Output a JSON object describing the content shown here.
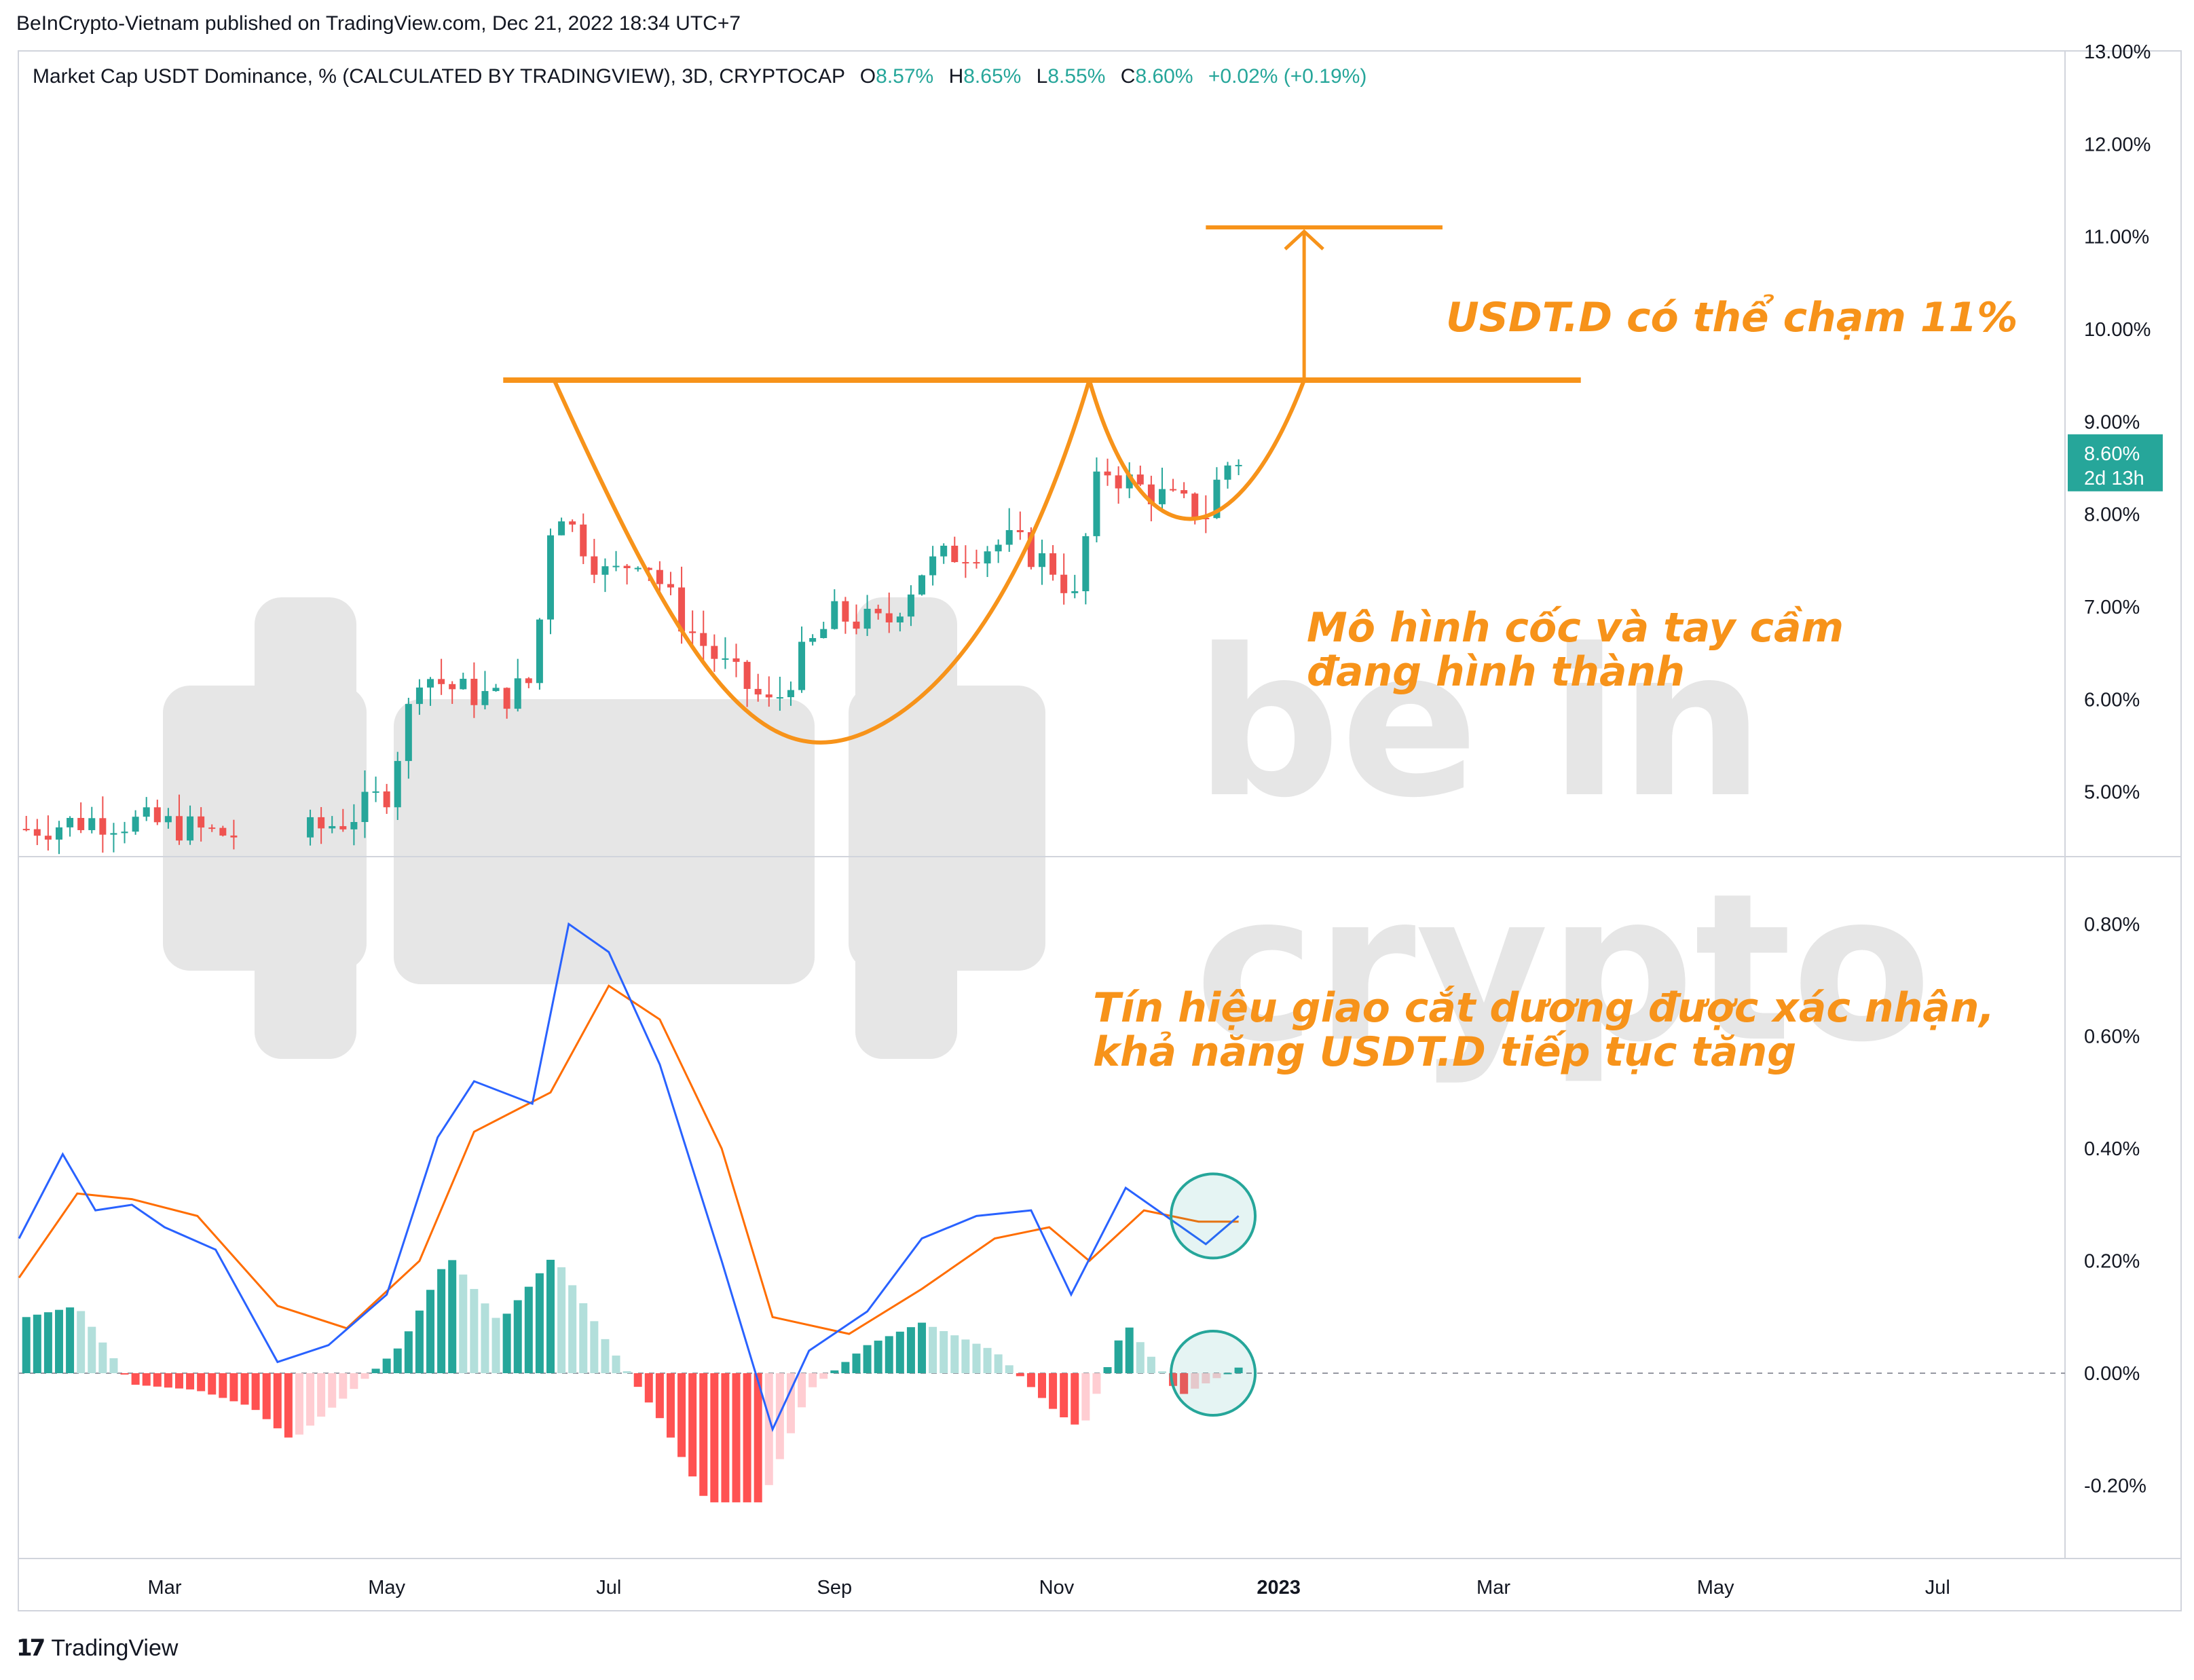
{
  "header": {
    "published": "BeInCrypto-Vietnam published on TradingView.com, Dec 21, 2022 18:34 UTC+7",
    "legend_title": "Market Cap USDT Dominance, % (CALCULATED BY TRADINGVIEW), 3D, CRYPTOCAP",
    "o_label": "O",
    "o_value": "8.57%",
    "h_label": "H",
    "h_value": "8.65%",
    "l_label": "L",
    "l_value": "8.55%",
    "c_label": "C",
    "c_value": "8.60%",
    "change": "+0.02% (+0.19%)"
  },
  "footer": {
    "logo_mark": "17",
    "brand": "TradingView"
  },
  "watermark": {
    "text1": "be in",
    "text2": "crypto"
  },
  "annotations": {
    "target": "USDT.D có thể chạm 11%",
    "pattern_line1": "Mô hình cốc và tay cầm",
    "pattern_line2": "đang hình thành",
    "signal_line1": "Tín hiệu giao cắt dương được xác nhận,",
    "signal_line2": "khả năng USDT.D tiếp tục tăng"
  },
  "price_badge": {
    "value": "8.60%",
    "countdown": "2d 13h"
  },
  "colors": {
    "up": "#26a69a",
    "down": "#ef5350",
    "hist_up_strong": "#26a69a",
    "hist_up_weak": "#b2dfdb",
    "hist_down_strong": "#ff5252",
    "hist_down_weak": "#ffcdd2",
    "macd": "#2962ff",
    "signal": "#ff6d00",
    "annotation": "#f7931a",
    "watermark": "#e6e6e6"
  },
  "chart_data": [
    {
      "type": "candlestick",
      "title": "Market Cap USDT Dominance, %",
      "y_ticks": [
        "5.00%",
        "6.00%",
        "7.00%",
        "8.00%",
        "9.00%",
        "10.00%",
        "11.00%",
        "12.00%",
        "13.00%"
      ],
      "ylim": [
        4.3,
        13.0
      ],
      "x_ticks": [
        "Mar",
        "May",
        "Jul",
        "Sep",
        "Nov",
        "2023",
        "Mar",
        "May",
        "Jul"
      ],
      "xlim_days": [
        "2022-01-20",
        "2023-08-05"
      ],
      "approx_close_path": [
        {
          "date": "2022-01-22",
          "close": 4.6
        },
        {
          "date": "2022-02-10",
          "close": 4.7
        },
        {
          "date": "2022-03-01",
          "close": 4.65
        },
        {
          "date": "2022-03-15",
          "close": 4.55
        },
        {
          "date": "2022-04-05",
          "close": 4.5
        },
        {
          "date": "2022-04-20",
          "close": 4.7
        },
        {
          "date": "2022-05-01",
          "close": 5.0
        },
        {
          "date": "2022-05-10",
          "close": 6.3
        },
        {
          "date": "2022-05-20",
          "close": 6.1
        },
        {
          "date": "2022-06-01",
          "close": 6.0
        },
        {
          "date": "2022-06-10",
          "close": 6.2
        },
        {
          "date": "2022-06-16",
          "close": 8.2
        },
        {
          "date": "2022-06-20",
          "close": 7.9
        },
        {
          "date": "2022-07-01",
          "close": 7.3
        },
        {
          "date": "2022-07-10",
          "close": 7.6
        },
        {
          "date": "2022-07-22",
          "close": 6.8
        },
        {
          "date": "2022-08-03",
          "close": 6.3
        },
        {
          "date": "2022-08-15",
          "close": 5.9
        },
        {
          "date": "2022-08-22",
          "close": 6.4
        },
        {
          "date": "2022-09-01",
          "close": 6.9
        },
        {
          "date": "2022-09-15",
          "close": 6.8
        },
        {
          "date": "2022-09-25",
          "close": 7.4
        },
        {
          "date": "2022-10-05",
          "close": 7.6
        },
        {
          "date": "2022-10-20",
          "close": 7.7
        },
        {
          "date": "2022-11-01",
          "close": 7.4
        },
        {
          "date": "2022-11-07",
          "close": 7.0
        },
        {
          "date": "2022-11-10",
          "close": 8.1
        },
        {
          "date": "2022-11-14",
          "close": 8.5
        },
        {
          "date": "2022-11-23",
          "close": 8.3
        },
        {
          "date": "2022-12-05",
          "close": 8.1
        },
        {
          "date": "2022-12-13",
          "close": 8.0
        },
        {
          "date": "2022-12-16",
          "close": 8.5
        },
        {
          "date": "2022-12-21",
          "close": 8.6
        }
      ],
      "resistance_level": 9.45,
      "target_level": 11.1,
      "last": {
        "open": 8.57,
        "high": 8.65,
        "low": 8.55,
        "close": 8.6
      }
    },
    {
      "type": "macd",
      "y_ticks": [
        "0.80%",
        "0.60%",
        "0.40%",
        "0.20%",
        "0.00%",
        "-0.20%"
      ],
      "ylim": [
        -0.33,
        0.92
      ],
      "macd_line": [
        {
          "date": "2022-01-20",
          "value": 0.24
        },
        {
          "date": "2022-02-01",
          "value": 0.39
        },
        {
          "date": "2022-02-10",
          "value": 0.29
        },
        {
          "date": "2022-02-20",
          "value": 0.3
        },
        {
          "date": "2022-03-01",
          "value": 0.26
        },
        {
          "date": "2022-03-15",
          "value": 0.22
        },
        {
          "date": "2022-04-01",
          "value": 0.02
        },
        {
          "date": "2022-04-15",
          "value": 0.05
        },
        {
          "date": "2022-05-01",
          "value": 0.14
        },
        {
          "date": "2022-05-15",
          "value": 0.42
        },
        {
          "date": "2022-05-25",
          "value": 0.52
        },
        {
          "date": "2022-06-10",
          "value": 0.48
        },
        {
          "date": "2022-06-20",
          "value": 0.8
        },
        {
          "date": "2022-07-01",
          "value": 0.75
        },
        {
          "date": "2022-07-15",
          "value": 0.55
        },
        {
          "date": "2022-08-01",
          "value": 0.2
        },
        {
          "date": "2022-08-15",
          "value": -0.1
        },
        {
          "date": "2022-08-25",
          "value": 0.04
        },
        {
          "date": "2022-09-10",
          "value": 0.11
        },
        {
          "date": "2022-09-25",
          "value": 0.24
        },
        {
          "date": "2022-10-10",
          "value": 0.28
        },
        {
          "date": "2022-10-25",
          "value": 0.29
        },
        {
          "date": "2022-11-05",
          "value": 0.14
        },
        {
          "date": "2022-11-20",
          "value": 0.33
        },
        {
          "date": "2022-12-01",
          "value": 0.28
        },
        {
          "date": "2022-12-12",
          "value": 0.23
        },
        {
          "date": "2022-12-21",
          "value": 0.28
        }
      ],
      "signal_line": [
        {
          "date": "2022-01-20",
          "value": 0.17
        },
        {
          "date": "2022-02-05",
          "value": 0.32
        },
        {
          "date": "2022-02-20",
          "value": 0.31
        },
        {
          "date": "2022-03-10",
          "value": 0.28
        },
        {
          "date": "2022-04-01",
          "value": 0.12
        },
        {
          "date": "2022-04-20",
          "value": 0.08
        },
        {
          "date": "2022-05-10",
          "value": 0.2
        },
        {
          "date": "2022-05-25",
          "value": 0.43
        },
        {
          "date": "2022-06-15",
          "value": 0.5
        },
        {
          "date": "2022-07-01",
          "value": 0.69
        },
        {
          "date": "2022-07-15",
          "value": 0.63
        },
        {
          "date": "2022-08-01",
          "value": 0.4
        },
        {
          "date": "2022-08-15",
          "value": 0.1
        },
        {
          "date": "2022-09-05",
          "value": 0.07
        },
        {
          "date": "2022-09-25",
          "value": 0.15
        },
        {
          "date": "2022-10-15",
          "value": 0.24
        },
        {
          "date": "2022-10-30",
          "value": 0.26
        },
        {
          "date": "2022-11-10",
          "value": 0.2
        },
        {
          "date": "2022-11-25",
          "value": 0.29
        },
        {
          "date": "2022-12-10",
          "value": 0.27
        },
        {
          "date": "2022-12-21",
          "value": 0.27
        }
      ],
      "histogram_path": [
        {
          "date": "2022-01-22",
          "value": 0.1
        },
        {
          "date": "2022-02-05",
          "value": 0.12
        },
        {
          "date": "2022-02-20",
          "value": -0.02
        },
        {
          "date": "2022-03-10",
          "value": -0.03
        },
        {
          "date": "2022-03-25",
          "value": -0.06
        },
        {
          "date": "2022-04-05",
          "value": -0.12
        },
        {
          "date": "2022-04-20",
          "value": -0.04
        },
        {
          "date": "2022-05-05",
          "value": 0.05
        },
        {
          "date": "2022-05-18",
          "value": 0.21
        },
        {
          "date": "2022-06-01",
          "value": 0.09
        },
        {
          "date": "2022-06-16",
          "value": 0.21
        },
        {
          "date": "2022-07-01",
          "value": 0.05
        },
        {
          "date": "2022-07-15",
          "value": -0.08
        },
        {
          "date": "2022-07-28",
          "value": -0.23
        },
        {
          "date": "2022-08-12",
          "value": -0.23
        },
        {
          "date": "2022-08-25",
          "value": -0.03
        },
        {
          "date": "2022-09-10",
          "value": 0.05
        },
        {
          "date": "2022-09-25",
          "value": 0.09
        },
        {
          "date": "2022-10-15",
          "value": 0.04
        },
        {
          "date": "2022-11-01",
          "value": -0.07
        },
        {
          "date": "2022-11-08",
          "value": -0.1
        },
        {
          "date": "2022-11-20",
          "value": 0.09
        },
        {
          "date": "2022-12-05",
          "value": -0.04
        },
        {
          "date": "2022-12-21",
          "value": 0.01
        }
      ]
    }
  ]
}
